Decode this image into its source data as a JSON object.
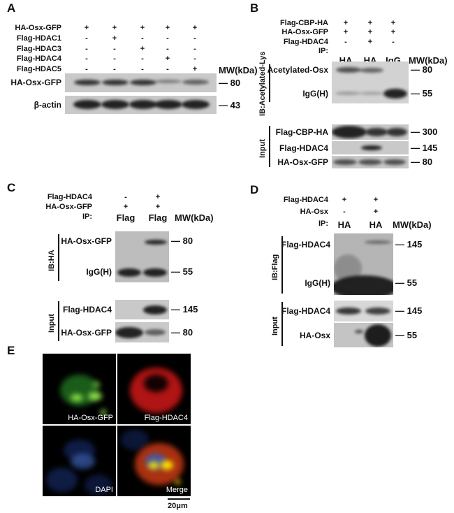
{
  "panels": {
    "A": {
      "label": "A",
      "rows": [
        {
          "name": "HA-Osx-GFP",
          "signs": [
            "+",
            "+",
            "+",
            "+",
            "+"
          ]
        },
        {
          "name": "Flag-HDAC1",
          "signs": [
            "-",
            "+",
            "-",
            "-",
            "-"
          ]
        },
        {
          "name": "Flag-HDAC3",
          "signs": [
            "-",
            "-",
            "+",
            "-",
            "-"
          ]
        },
        {
          "name": "Flag-HDAC4",
          "signs": [
            "-",
            "-",
            "-",
            "+",
            "-"
          ]
        },
        {
          "name": "Flag-HDAC5",
          "signs": [
            "-",
            "-",
            "-",
            "-",
            "+"
          ]
        }
      ],
      "mw_header": "MW(kDa)",
      "blots": [
        {
          "name": "HA-Osx-GFP",
          "mw": "80"
        },
        {
          "name": "β-actin",
          "mw": "43"
        }
      ]
    },
    "B": {
      "label": "B",
      "rows": [
        {
          "name": "Flag-CBP-HA",
          "signs": [
            "+",
            "+",
            "+"
          ]
        },
        {
          "name": "HA-Osx-GFP",
          "signs": [
            "+",
            "+",
            "+"
          ]
        },
        {
          "name": "Flag-HDAC4",
          "signs": [
            "-",
            "+",
            "-"
          ]
        }
      ],
      "ip_label": "IP:",
      "ip": [
        "HA",
        "HA",
        "IgG"
      ],
      "mw_header": "MW(kDa)",
      "ib_label": "IB:Acetylated-Lys",
      "ib_bands": [
        {
          "name": "Acetylated-Osx",
          "mw": "80"
        },
        {
          "name": "IgG(H)",
          "mw": "55"
        }
      ],
      "input_label": "Input",
      "input_bands": [
        {
          "name": "Flag-CBP-HA",
          "mw": "300"
        },
        {
          "name": "Flag-HDAC4",
          "mw": "145"
        },
        {
          "name": "HA-Osx-GFP",
          "mw": "80"
        }
      ]
    },
    "C": {
      "label": "C",
      "rows": [
        {
          "name": "Flag-HDAC4",
          "signs": [
            "-",
            "+"
          ]
        },
        {
          "name": "HA-Osx-GFP",
          "signs": [
            "+",
            "+"
          ]
        }
      ],
      "ip_label": "IP:",
      "ip": [
        "Flag",
        "Flag"
      ],
      "mw_header": "MW(kDa)",
      "ib_label": "IB:HA",
      "ib_bands": [
        {
          "name": "HA-Osx-GFP",
          "mw": "80"
        },
        {
          "name": "IgG(H)",
          "mw": "55"
        }
      ],
      "input_label": "Input",
      "input_bands": [
        {
          "name": "Flag-HDAC4",
          "mw": "145"
        },
        {
          "name": "HA-Osx-GFP",
          "mw": "80"
        }
      ]
    },
    "D": {
      "label": "D",
      "rows": [
        {
          "name": "Flag-HDAC4",
          "signs": [
            "+",
            "+"
          ]
        },
        {
          "name": "HA-Osx",
          "signs": [
            "-",
            "+"
          ]
        }
      ],
      "ip_label": "IP:",
      "ip": [
        "HA",
        "HA"
      ],
      "mw_header": "MW(kDa)",
      "ib_label": "IB:Flag",
      "ib_bands": [
        {
          "name": "Flag-HDAC4",
          "mw": "145"
        },
        {
          "name": "IgG(H)",
          "mw": "55"
        }
      ],
      "input_label": "Input",
      "input_bands": [
        {
          "name": "Flag-HDAC4",
          "mw": "145"
        },
        {
          "name": "HA-Osx",
          "mw": "55"
        }
      ]
    },
    "E": {
      "label": "E",
      "images": [
        "HA-Osx-GFP",
        "Flag-HDAC4",
        "DAPI",
        "Merge"
      ],
      "scale_bar": "20μm"
    }
  }
}
